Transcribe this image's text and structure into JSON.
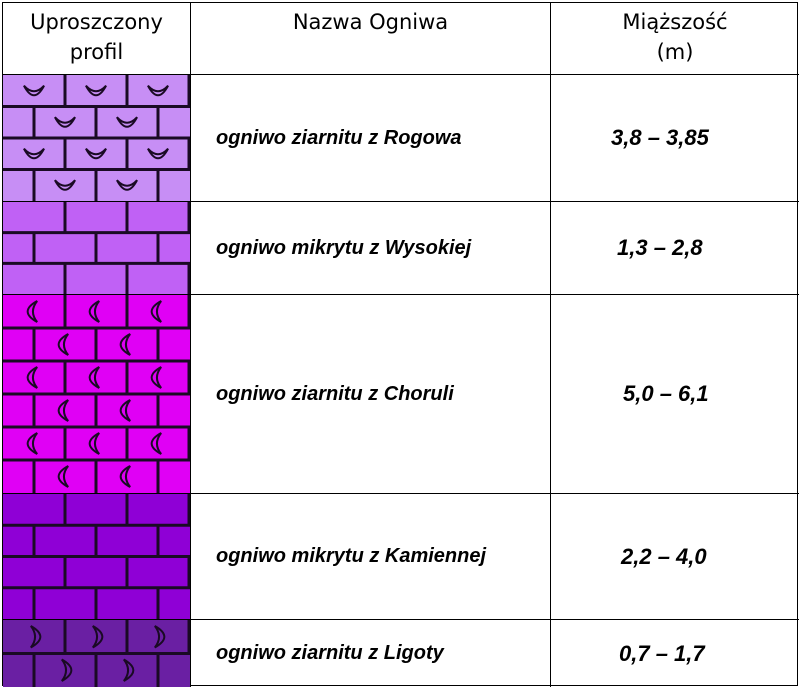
{
  "header": {
    "profile": "Uproszczony\nprofil",
    "name": "Nazwa Ogniwa",
    "thickness": "Miąższość\n(m)"
  },
  "rows": [
    {
      "name": "ogniwo ziarnitu z Rogowa",
      "thickness": "3,8 – 3,85",
      "fill": "#c78ef5",
      "pattern": "brick-with-cup-symbols",
      "symbol": "cup"
    },
    {
      "name": "ogniwo mikrytu z Wysokiej",
      "thickness": "1,3 – 2,8",
      "fill": "#c061f5",
      "pattern": "brick",
      "symbol": "none"
    },
    {
      "name": "ogniwo ziarnitu z Choruli",
      "thickness": "5,0 – 6,1",
      "fill": "#e000f5",
      "pattern": "brick-with-crescent-symbols",
      "symbol": "crescent-left"
    },
    {
      "name": "ogniwo mikrytu z Kamiennej",
      "thickness": "2,2 – 4,0",
      "fill": "#8f00d6",
      "pattern": "brick",
      "symbol": "none"
    },
    {
      "name": "ogniwo ziarnitu z Ligoty",
      "thickness": "0,7 – 1,7",
      "fill": "#6a1fa3",
      "pattern": "brick-with-crescent-symbols",
      "symbol": "crescent-right"
    }
  ]
}
